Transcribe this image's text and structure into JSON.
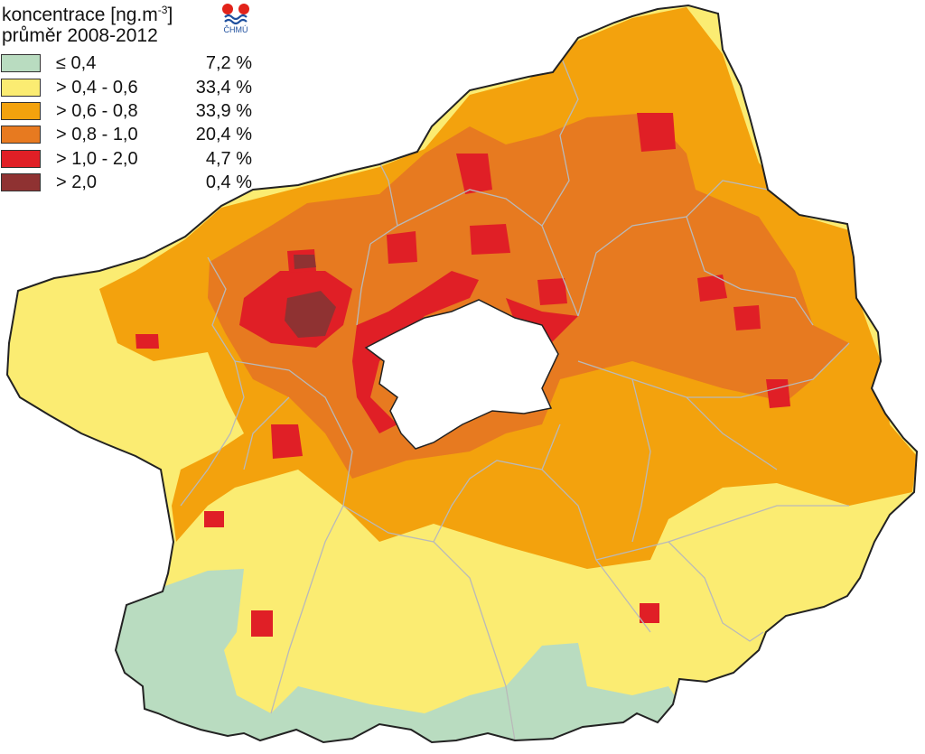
{
  "legend": {
    "title_line1": "koncentrace [ng.m",
    "title_superscript": "-3",
    "title_line1_end": "]",
    "title_line2": "průměr 2008-2012",
    "classes": [
      {
        "range": "≤ 0,4",
        "percent": "7,2 %",
        "color": "#b9dcc0"
      },
      {
        "range": "> 0,4 - 0,6",
        "percent": "33,4 %",
        "color": "#fbec72"
      },
      {
        "range": "> 0,6 - 0,8",
        "percent": "33,9 %",
        "color": "#f3a20d"
      },
      {
        "range": "> 0,8 - 1,0",
        "percent": "20,4 %",
        "color": "#e77a20"
      },
      {
        "range": "> 1,0 - 2,0",
        "percent": "4,7 %",
        "color": "#e01f26"
      },
      {
        "range": "> 2,0",
        "percent": "0,4 %",
        "color": "#8f3232"
      }
    ]
  },
  "logo": {
    "text": "ČHMÚ",
    "color_red": "#e2231a",
    "color_blue": "#1e4f9e"
  },
  "map": {
    "region_outline_color": "#222222",
    "district_border_color": "#b9b9b9",
    "zones": {
      "very_low": "#b9dcc0",
      "low": "#fbec72",
      "medium": "#f3a20d",
      "elevated": "#e77a20",
      "high": "#e01f26",
      "very_high": "#8f3232"
    }
  }
}
